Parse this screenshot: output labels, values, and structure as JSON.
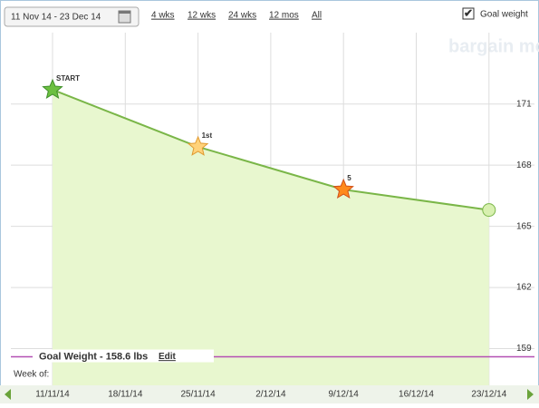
{
  "toolbar": {
    "date_range": "11 Nov 14 - 23 Dec 14",
    "ranges": [
      "4 wks",
      "12 wks",
      "24 wks",
      "12 mos",
      "All"
    ],
    "active_ranges": [
      true,
      false,
      false,
      false,
      true
    ],
    "goal_toggle": "Goal weight",
    "goal_checked": true
  },
  "watermark": "bargain moose",
  "chart_data": {
    "type": "line",
    "x": [
      "11/11/14",
      "25/11/14",
      "9/12/14",
      "23/12/14"
    ],
    "xticks": [
      "11/11/14",
      "18/11/14",
      "25/11/14",
      "2/12/14",
      "9/12/14",
      "16/12/14",
      "23/12/14"
    ],
    "x_axis_label": "Week of:",
    "series": [
      {
        "values": [
          171.7,
          168.9,
          166.8,
          165.8
        ],
        "color": "#7ab648",
        "point_labels": [
          "START",
          "1st",
          "5",
          null
        ]
      }
    ],
    "ylim": [
      157.2,
      174.5
    ],
    "yticks": [
      159,
      162,
      165,
      168,
      171
    ],
    "grid": true,
    "goal": {
      "value": 158.6,
      "label": "Goal Weight - 158.6 lbs",
      "action": "Edit",
      "color": "#b450b4"
    }
  }
}
